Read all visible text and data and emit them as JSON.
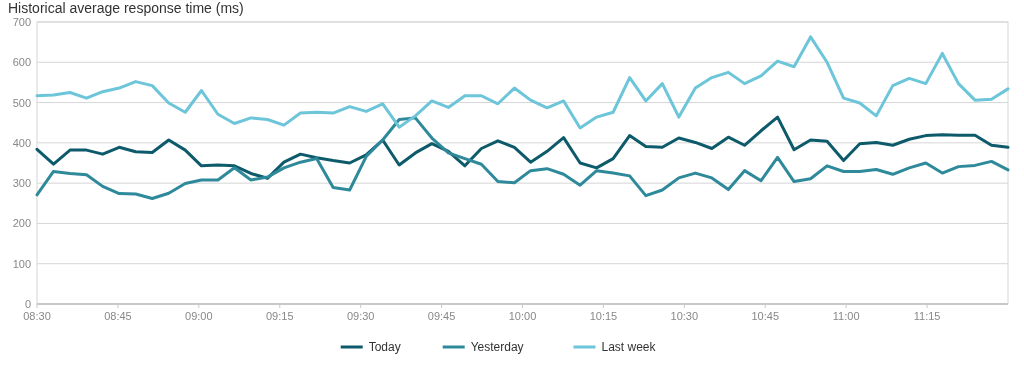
{
  "chart_data": {
    "type": "line",
    "title": "Historical average response time (ms)",
    "x": [
      8.5,
      8.551,
      8.602,
      8.653,
      8.703,
      8.754,
      8.805,
      8.856,
      8.907,
      8.958,
      9.008,
      9.059,
      9.11,
      9.161,
      9.212,
      9.263,
      9.314,
      9.364,
      9.415,
      9.466,
      9.517,
      9.568,
      9.619,
      9.669,
      9.72,
      9.771,
      9.822,
      9.873,
      9.924,
      9.975,
      10.025,
      10.076,
      10.127,
      10.178,
      10.229,
      10.28,
      10.331,
      10.381,
      10.432,
      10.483,
      10.534,
      10.585,
      10.636,
      10.686,
      10.737,
      10.788,
      10.839,
      10.89,
      10.941,
      10.992,
      11.042,
      11.093,
      11.144,
      11.195,
      11.246,
      11.297,
      11.347,
      11.398,
      11.449,
      11.5
    ],
    "series": [
      {
        "name": "Today",
        "color": "#0d5a6b",
        "values": [
          384,
          347,
          382,
          382,
          372,
          389,
          378,
          376,
          407,
          382,
          343,
          345,
          343,
          324,
          312,
          352,
          372,
          363,
          356,
          350,
          370,
          407,
          345,
          375,
          398,
          379,
          343,
          386,
          405,
          389,
          352,
          379,
          413,
          350,
          338,
          361,
          418,
          391,
          389,
          412,
          401,
          386,
          414,
          394,
          430,
          464,
          383,
          407,
          404,
          356,
          398,
          401,
          394,
          409,
          418,
          420,
          419,
          419,
          394,
          389
        ]
      },
      {
        "name": "Yesterday",
        "color": "#2e8a9a",
        "values": [
          271,
          329,
          324,
          321,
          292,
          274,
          273,
          262,
          275,
          299,
          308,
          308,
          338,
          308,
          315,
          338,
          352,
          361,
          289,
          283,
          366,
          407,
          458,
          462,
          412,
          375,
          361,
          347,
          304,
          301,
          331,
          336,
          322,
          295,
          331,
          325,
          318,
          269,
          283,
          313,
          325,
          313,
          284,
          331,
          306,
          364,
          304,
          311,
          343,
          329,
          329,
          334,
          322,
          338,
          350,
          325,
          341,
          344,
          354,
          333
        ]
      },
      {
        "name": "Last week",
        "color": "#6cc5d9",
        "values": [
          517,
          519,
          525,
          511,
          527,
          536,
          552,
          542,
          499,
          476,
          530,
          471,
          448,
          462,
          458,
          444,
          474,
          476,
          474,
          490,
          478,
          497,
          439,
          467,
          504,
          488,
          517,
          517,
          497,
          536,
          506,
          487,
          504,
          437,
          464,
          476,
          562,
          504,
          547,
          464,
          536,
          562,
          575,
          547,
          566,
          603,
          589,
          663,
          600,
          511,
          499,
          467,
          542,
          560,
          547,
          622,
          547,
          506,
          508,
          534
        ]
      }
    ],
    "xlim": [
      8.5,
      11.5
    ],
    "xticks": [
      {
        "value": 8.5,
        "label": "08:30"
      },
      {
        "value": 8.75,
        "label": "08:45"
      },
      {
        "value": 9,
        "label": "09:00"
      },
      {
        "value": 9.25,
        "label": "09:15"
      },
      {
        "value": 9.5,
        "label": "09:30"
      },
      {
        "value": 9.75,
        "label": "09:45"
      },
      {
        "value": 10,
        "label": "10:00"
      },
      {
        "value": 10.25,
        "label": "10:15"
      },
      {
        "value": 10.5,
        "label": "10:30"
      },
      {
        "value": 10.75,
        "label": "10:45"
      },
      {
        "value": 11,
        "label": "11:00"
      },
      {
        "value": 11.25,
        "label": "11:15"
      }
    ],
    "ylim": [
      0,
      700
    ],
    "yticks": [
      0,
      100,
      200,
      300,
      400,
      500,
      600,
      700
    ],
    "grid": "y",
    "legend": "bottom",
    "marker": "none",
    "line_style": "solid"
  }
}
